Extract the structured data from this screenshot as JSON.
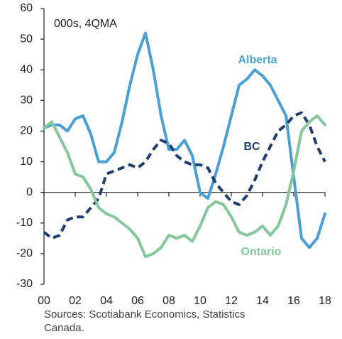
{
  "chart_data": {
    "type": "line",
    "annotation": "000s, 4QMA",
    "source": [
      "Sources: Scotiabank Economics, Statistics",
      "Canada."
    ],
    "x": [
      0,
      0.5,
      1,
      1.5,
      2,
      2.5,
      3,
      3.5,
      4,
      4.5,
      5,
      5.5,
      6,
      6.5,
      7,
      7.5,
      8,
      8.5,
      9,
      9.5,
      10,
      10.5,
      11,
      11.5,
      12,
      12.5,
      13,
      13.5,
      14,
      14.5,
      15,
      15.5,
      16,
      16.5,
      17,
      17.5,
      18
    ],
    "series": [
      {
        "name": "Alberta",
        "color": "#4a9fd4",
        "line_style": "solid",
        "values": [
          21,
          22,
          22,
          20,
          24,
          25,
          19,
          10,
          10,
          13,
          23,
          35,
          45,
          52,
          40,
          25,
          14,
          14,
          17,
          12,
          0,
          -2,
          6,
          15,
          25,
          35,
          37,
          40,
          38,
          35,
          30,
          25,
          5,
          -15,
          -18,
          -15,
          -7
        ]
      },
      {
        "name": "BC",
        "color": "#1f3d6e",
        "line_style": "dashed",
        "values": [
          -13,
          -15,
          -14,
          -9,
          -8,
          -8,
          -5,
          -2,
          6,
          7,
          8,
          9,
          8,
          10,
          14,
          17,
          16,
          12,
          10,
          9,
          9,
          8,
          3,
          0,
          -3,
          -4,
          -1,
          4,
          10,
          15,
          20,
          22,
          25,
          26,
          22,
          15,
          10
        ]
      },
      {
        "name": "Ontario",
        "color": "#85c79a",
        "line_style": "solid",
        "values": [
          21,
          23,
          18,
          13,
          6,
          5,
          1,
          -5,
          -7,
          -8,
          -10,
          -12,
          -15,
          -21,
          -20,
          -18,
          -14,
          -15,
          -14,
          -16,
          -11,
          -5,
          -3,
          -4,
          -8,
          -13,
          -14,
          -13,
          -11,
          -14,
          -11,
          -4,
          7,
          20,
          23,
          25,
          22
        ]
      }
    ],
    "xlim": [
      0,
      18
    ],
    "xticks": [
      {
        "value": 0,
        "label": "00"
      },
      {
        "value": 2,
        "label": "02"
      },
      {
        "value": 4,
        "label": "04"
      },
      {
        "value": 6,
        "label": "06"
      },
      {
        "value": 8,
        "label": "08"
      },
      10,
      12,
      14,
      16,
      18
    ],
    "ylim": [
      -30,
      60
    ],
    "yticks": [
      -30,
      -20,
      -10,
      0,
      10,
      20,
      30,
      40,
      50,
      60
    ]
  }
}
